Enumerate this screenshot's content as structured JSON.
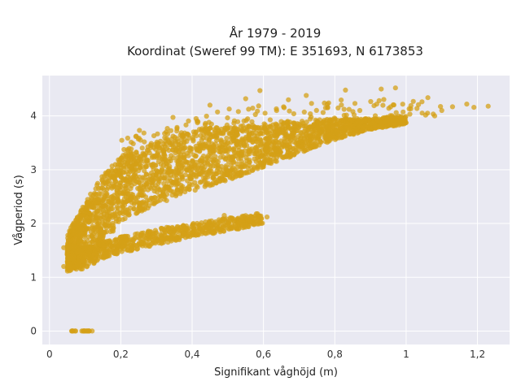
{
  "chart_data": {
    "type": "scatter",
    "title_line1": "År 1979 - 2019",
    "title_line2": "Koordinat (Sweref 99 TM): E 351693, N 6173853",
    "xlabel": "Signifikant våghöjd (m)",
    "ylabel": "Vågperiod (s)",
    "xlim": [
      -0.02,
      1.29
    ],
    "ylim": [
      -0.25,
      4.75
    ],
    "x_ticks": [
      0,
      0.2,
      0.4,
      0.6,
      0.8,
      1,
      1.2
    ],
    "x_tick_labels": [
      "0",
      "0,2",
      "0,4",
      "0,6",
      "0,8",
      "1",
      "1,2"
    ],
    "y_ticks": [
      0,
      1,
      2,
      3,
      4
    ],
    "y_tick_labels": [
      "0",
      "1",
      "2",
      "3",
      "4"
    ],
    "grid": true,
    "marker_color": "#d4a017",
    "plot_bg": "#e9e9f2",
    "clusters": {
      "zero_band": {
        "x_range": [
          0.05,
          0.12
        ],
        "y": 0
      },
      "main_band": {
        "x": [
          0.05,
          0.1,
          0.15,
          0.2,
          0.3,
          0.4,
          0.5,
          0.6,
          0.7,
          0.8,
          0.9,
          1.0
        ],
        "y_low": [
          1.1,
          1.25,
          1.6,
          2.05,
          2.35,
          2.6,
          2.8,
          3.05,
          3.3,
          3.55,
          3.75,
          3.85
        ],
        "y_high": [
          1.8,
          2.4,
          2.9,
          3.25,
          3.55,
          3.75,
          3.8,
          3.85,
          3.9,
          3.95,
          3.95,
          4.0
        ]
      },
      "lower_band": {
        "x": [
          0.05,
          0.1,
          0.15,
          0.2,
          0.3,
          0.4,
          0.5,
          0.6
        ],
        "y_low": [
          1.15,
          1.15,
          1.35,
          1.45,
          1.6,
          1.75,
          1.85,
          2.0
        ],
        "y_high": [
          1.6,
          1.55,
          1.65,
          1.75,
          1.9,
          2.0,
          2.1,
          2.2
        ]
      },
      "outliers": [
        [
          0.59,
          4.47
        ],
        [
          0.83,
          4.48
        ],
        [
          0.93,
          4.5
        ],
        [
          0.97,
          4.52
        ],
        [
          1.02,
          4.27
        ],
        [
          1.1,
          4.1
        ],
        [
          1.13,
          4.17
        ],
        [
          1.17,
          4.22
        ],
        [
          1.19,
          4.16
        ],
        [
          1.23,
          4.18
        ],
        [
          1.08,
          4.0
        ],
        [
          1.06,
          4.05
        ],
        [
          0.55,
          4.32
        ],
        [
          0.45,
          4.2
        ],
        [
          0.67,
          4.3
        ],
        [
          0.72,
          4.38
        ],
        [
          0.78,
          4.15
        ],
        [
          0.87,
          4.1
        ],
        [
          0.61,
          2.12
        ],
        [
          0.54,
          2.13
        ],
        [
          0.58,
          2.18
        ],
        [
          0.49,
          2.15
        ],
        [
          0.04,
          1.2
        ],
        [
          0.04,
          1.55
        ],
        [
          0.05,
          1.5
        ]
      ]
    }
  }
}
